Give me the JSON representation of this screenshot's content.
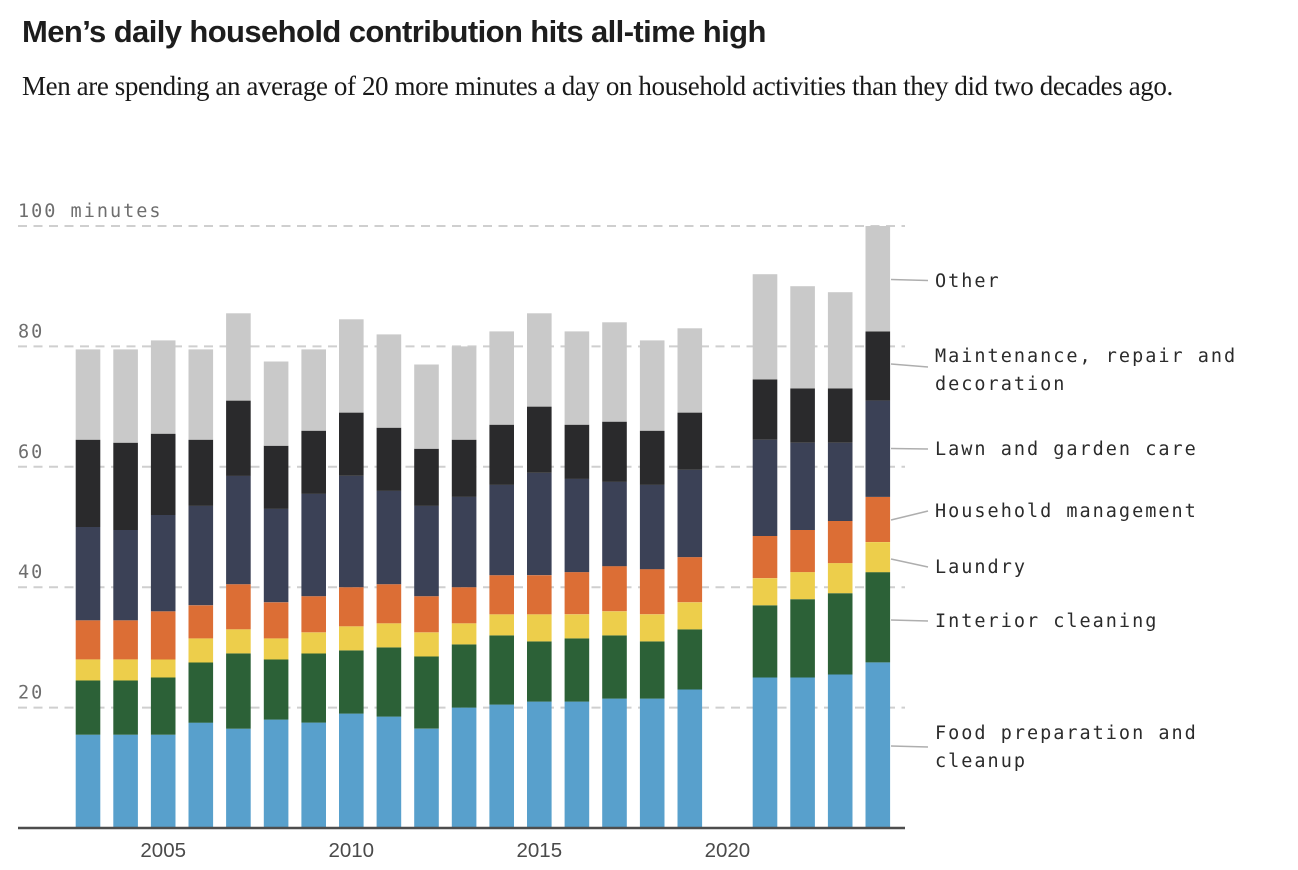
{
  "header": {
    "title": "Men’s daily household contribution hits all-time high",
    "subtitle": "Men are spending an average of 20 more minutes a day on household activities than they did two decades ago."
  },
  "chart_data": {
    "type": "bar",
    "stacked": true,
    "title": "Men’s daily household contribution hits all-time high",
    "unit": "minutes per day",
    "ylim": [
      0,
      100
    ],
    "yticks": [
      20,
      40,
      60,
      80,
      100
    ],
    "ytick_top_label": "100 minutes",
    "grid": "dashed-horizontal",
    "legend_position": "right",
    "x_axis_tick_labels": [
      "2005",
      "2010",
      "2015",
      "2020"
    ],
    "x_axis_tick_years": [
      2005,
      2010,
      2015,
      2020
    ],
    "years": [
      2003,
      2004,
      2005,
      2006,
      2007,
      2008,
      2009,
      2010,
      2011,
      2012,
      2013,
      2014,
      2015,
      2016,
      2017,
      2018,
      2019,
      2021,
      2022,
      2023,
      2024
    ],
    "missing_years": [
      2020
    ],
    "series": [
      {
        "name": "Food preparation and\ncleanup",
        "color": "#58a0cc",
        "values": [
          15.5,
          15.5,
          15.5,
          17.5,
          16.5,
          18,
          17.5,
          19,
          18.5,
          16.5,
          20,
          20.5,
          21,
          21,
          21.5,
          21.5,
          23,
          25,
          25,
          25.5,
          27.5
        ]
      },
      {
        "name": "Interior cleaning",
        "color": "#2c6137",
        "values": [
          9,
          9,
          9.5,
          10,
          12.5,
          10,
          11.5,
          10.5,
          11.5,
          12,
          10.5,
          11.5,
          10,
          10.5,
          10.5,
          9.5,
          10,
          12,
          13,
          13.5,
          15
        ]
      },
      {
        "name": "Laundry",
        "color": "#edce4b",
        "values": [
          3.5,
          3.5,
          3,
          4,
          4,
          3.5,
          3.5,
          4,
          4,
          4,
          3.5,
          3.5,
          4.5,
          4,
          4,
          4.5,
          4.5,
          4.5,
          4.5,
          5,
          5
        ]
      },
      {
        "name": "Household management",
        "color": "#dc6e35",
        "values": [
          6.5,
          6.5,
          8,
          5.5,
          7.5,
          6,
          6,
          6.5,
          6.5,
          6,
          6,
          6.5,
          6.5,
          7,
          7.5,
          7.5,
          7.5,
          7,
          7,
          7,
          7.5
        ]
      },
      {
        "name": "Lawn and garden care",
        "color": "#3b4156",
        "values": [
          15.5,
          15,
          16,
          16.5,
          18,
          15.5,
          17,
          18.5,
          15.5,
          15,
          15,
          15,
          17,
          15.5,
          14,
          14,
          14.5,
          16,
          14.5,
          13,
          16
        ]
      },
      {
        "name": "Maintenance, repair and\ndecoration",
        "color": "#2a2a2c",
        "values": [
          14.5,
          14.5,
          13.5,
          11,
          12.5,
          10.5,
          10.5,
          10.5,
          10.5,
          9.5,
          9.5,
          10,
          11,
          9,
          10,
          9,
          9.5,
          10,
          9,
          9,
          11.5
        ]
      },
      {
        "name": "Other",
        "color": "#c9c9c9",
        "values": [
          15,
          15.5,
          15.5,
          15,
          14.5,
          14,
          13.5,
          15.5,
          15.5,
          14,
          15.5,
          15.5,
          15.5,
          15.5,
          16.5,
          15,
          14,
          17.5,
          17,
          16,
          17.5
        ]
      }
    ],
    "totals": [
      79.5,
      79.5,
      81,
      79.5,
      85.5,
      77.5,
      79.5,
      84.5,
      82,
      77,
      80,
      82.5,
      85.5,
      82.5,
      84,
      81,
      83,
      92,
      90,
      89,
      100
    ],
    "colors": {
      "gridline": "#cfcfcf",
      "axis_line": "#4d4d4d",
      "tick_text": "#6e6e6e",
      "year_text": "#4a4a4a",
      "legend_text": "#2b2b2b",
      "connector": "#aeaeae"
    }
  }
}
